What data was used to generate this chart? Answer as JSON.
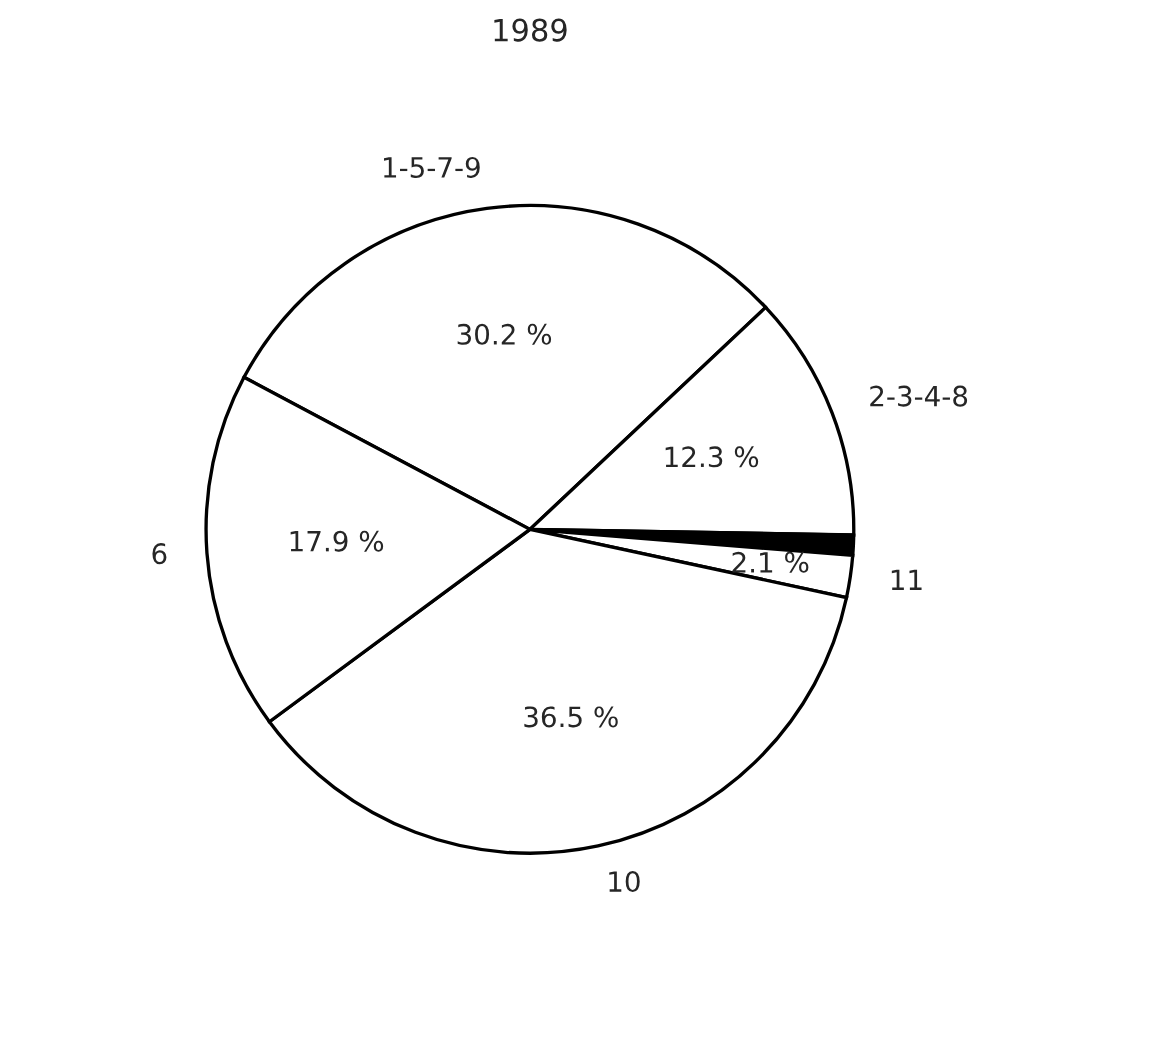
{
  "chart_data": {
    "type": "pie",
    "title": "1989",
    "categories": [
      "1-5-7-9",
      "2-3-4-8",
      null,
      "11",
      "10",
      "6"
    ],
    "values": [
      30.2,
      12.3,
      1.0,
      2.1,
      36.5,
      17.9
    ],
    "value_labels": [
      "30.2 %",
      "12.3 %",
      null,
      "2.1 %",
      "36.5 %",
      "17.9 %"
    ],
    "colors": [
      "#ffffff",
      "#ffffff",
      "#000000",
      "#ffffff",
      "#ffffff",
      "#ffffff"
    ]
  }
}
